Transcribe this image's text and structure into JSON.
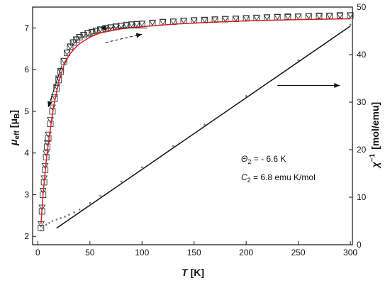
{
  "chart_data": {
    "type": "scatter",
    "title": "",
    "x_axis": {
      "label": "T",
      "unit": "[K]",
      "range": [
        -5,
        302
      ],
      "ticks": [
        0,
        50,
        100,
        150,
        200,
        250,
        300
      ]
    },
    "y_left": {
      "label": "μ",
      "label_sub": "eff",
      "unit_prefix": "[μ",
      "unit_sub": "B",
      "unit_suffix": "]",
      "range": [
        1.8,
        7.5
      ],
      "ticks": [
        2,
        3,
        4,
        5,
        6,
        7
      ]
    },
    "y_right": {
      "label": "χ",
      "label_sup": "−1",
      "unit": "[mol/emu]",
      "range": [
        0,
        50
      ],
      "ticks": [
        0,
        10,
        20,
        30,
        40,
        50
      ]
    },
    "grid": false,
    "legend": "none",
    "series": [
      {
        "marker": "square",
        "axis": "left",
        "color": "#333333",
        "x": [
          3,
          4,
          5,
          6,
          7,
          8,
          9,
          10,
          12,
          14,
          16,
          18,
          20,
          22,
          25,
          28,
          31,
          34,
          37,
          40,
          44,
          48,
          52,
          56,
          60,
          65,
          70,
          75,
          80,
          85,
          90,
          95,
          100,
          110,
          120,
          130,
          140,
          150,
          160,
          170,
          180,
          190,
          200,
          210,
          220,
          230,
          240,
          250,
          260,
          270,
          280,
          290,
          300
        ],
        "y": [
          2.2,
          2.6,
          3.0,
          3.3,
          3.6,
          3.9,
          4.15,
          4.35,
          4.7,
          5.0,
          5.3,
          5.55,
          5.75,
          5.95,
          6.2,
          6.4,
          6.55,
          6.65,
          6.72,
          6.78,
          6.83,
          6.87,
          6.9,
          6.93,
          6.96,
          6.99,
          7.01,
          7.03,
          7.05,
          7.07,
          7.08,
          7.09,
          7.1,
          7.12,
          7.14,
          7.15,
          7.17,
          7.18,
          7.19,
          7.2,
          7.21,
          7.22,
          7.23,
          7.24,
          7.25,
          7.26,
          7.27,
          7.27,
          7.28,
          7.29,
          7.29,
          7.3,
          7.3
        ]
      },
      {
        "marker": "triangle-down",
        "axis": "left",
        "color": "#333333",
        "x": [
          3,
          4,
          5,
          6,
          7,
          8,
          9,
          10,
          12,
          14,
          16,
          18,
          20,
          22,
          25,
          28,
          31,
          34,
          37,
          40,
          44,
          48,
          52,
          56,
          60,
          65,
          70,
          75,
          80,
          85,
          90,
          95,
          100,
          110,
          120,
          130,
          140,
          150,
          160,
          170,
          180,
          190,
          200,
          210,
          220,
          230,
          240,
          250,
          260,
          270,
          280,
          290,
          300
        ],
        "y": [
          2.3,
          2.7,
          3.1,
          3.4,
          3.7,
          4.0,
          4.25,
          4.45,
          4.8,
          5.1,
          5.35,
          5.6,
          5.8,
          5.98,
          6.22,
          6.42,
          6.56,
          6.66,
          6.73,
          6.79,
          6.84,
          6.88,
          6.91,
          6.94,
          6.97,
          7.0,
          7.02,
          7.04,
          7.06,
          7.07,
          7.09,
          7.1,
          7.11,
          7.13,
          7.15,
          7.16,
          7.18,
          7.19,
          7.2,
          7.21,
          7.22,
          7.23,
          7.24,
          7.25,
          7.26,
          7.27,
          7.27,
          7.28,
          7.29,
          7.29,
          7.3,
          7.3,
          7.31
        ]
      },
      {
        "marker": "line",
        "axis": "left",
        "color": "#d42020",
        "x": [
          3,
          5,
          8,
          11,
          15,
          20,
          25,
          30,
          35,
          40,
          50,
          60,
          80,
          100,
          130,
          160,
          200,
          250,
          300
        ],
        "y": [
          2.3,
          3.0,
          3.8,
          4.4,
          5.1,
          5.7,
          6.1,
          6.35,
          6.5,
          6.62,
          6.78,
          6.88,
          6.98,
          7.03,
          7.09,
          7.13,
          7.17,
          7.2,
          7.22
        ]
      },
      {
        "marker": "dot",
        "axis": "right",
        "color": "#777777",
        "x": [
          3,
          5,
          8,
          11,
          14,
          18,
          22,
          26,
          30,
          35,
          40,
          50,
          60,
          80,
          100,
          130,
          160,
          200,
          250,
          300
        ],
        "y": [
          3.0,
          3.6,
          4.2,
          4.6,
          5.0,
          5.3,
          5.6,
          5.9,
          6.3,
          6.8,
          7.4,
          8.8,
          10.3,
          13.3,
          16.3,
          20.8,
          25.3,
          31.3,
          38.8,
          46.3
        ]
      },
      {
        "marker": "line",
        "axis": "right",
        "color": "#111111",
        "x": [
          18,
          300
        ],
        "y": [
          3.5,
          46.0
        ]
      }
    ],
    "annotations": [
      {
        "prefix": "Θ",
        "sub": "2",
        "text": " = - 6.6 K"
      },
      {
        "prefix": "C",
        "sub": "2",
        "text": " = 6.8 emu K/mol"
      }
    ],
    "arrows": [
      {
        "style": "solid",
        "direction": "left",
        "from": [
          105,
          7.0
        ],
        "to": [
          60,
          7.0
        ],
        "axis": "left"
      },
      {
        "style": "solid",
        "direction": "down",
        "from": [
          23,
          6.1
        ],
        "to": [
          10,
          5.1
        ],
        "axis": "left"
      },
      {
        "style": "dashed",
        "direction": "right",
        "from": [
          65,
          6.65
        ],
        "to": [
          100,
          6.85
        ],
        "axis": "left"
      },
      {
        "style": "solid",
        "direction": "right",
        "from": [
          230,
          33.5
        ],
        "to": [
          290,
          33.5
        ],
        "axis": "right"
      }
    ]
  }
}
